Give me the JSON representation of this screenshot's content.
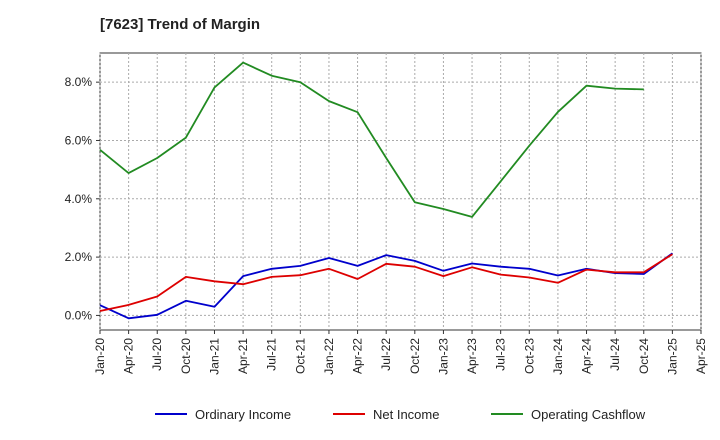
{
  "chart_data": {
    "type": "line",
    "title": "[7623]  Trend of Margin",
    "xlabel": "",
    "ylabel": "",
    "categories": [
      "Jan-20",
      "Apr-20",
      "Jul-20",
      "Oct-20",
      "Jan-21",
      "Apr-21",
      "Jul-21",
      "Oct-21",
      "Jan-22",
      "Apr-22",
      "Jul-22",
      "Oct-22",
      "Jan-23",
      "Apr-23",
      "Jul-23",
      "Oct-23",
      "Jan-24",
      "Apr-24",
      "Jul-24",
      "Oct-24",
      "Jan-25",
      "Apr-25"
    ],
    "ylim": [
      -0.5,
      9.0
    ],
    "yticks": [
      0.0,
      2.0,
      4.0,
      6.0,
      8.0
    ],
    "ytick_labels": [
      "0.0%",
      "2.0%",
      "4.0%",
      "6.0%",
      "8.0%"
    ],
    "grid": true,
    "legend_position": "bottom",
    "series": [
      {
        "name": "Ordinary Income",
        "color": "#0000cc",
        "values": [
          0.35,
          -0.1,
          0.02,
          0.5,
          0.3,
          1.35,
          1.6,
          1.7,
          1.97,
          1.7,
          2.07,
          1.87,
          1.53,
          1.78,
          1.67,
          1.6,
          1.37,
          1.6,
          1.45,
          1.42,
          2.13,
          null
        ]
      },
      {
        "name": "Net Income",
        "color": "#dd0000",
        "values": [
          0.15,
          0.36,
          0.65,
          1.32,
          1.17,
          1.07,
          1.32,
          1.38,
          1.6,
          1.25,
          1.77,
          1.67,
          1.35,
          1.65,
          1.4,
          1.3,
          1.12,
          1.57,
          1.48,
          1.48,
          2.1,
          null
        ]
      },
      {
        "name": "Operating Cashflow",
        "color": "#228b22",
        "values": [
          5.68,
          4.88,
          5.4,
          6.1,
          7.82,
          8.67,
          8.22,
          8.0,
          7.35,
          6.97,
          5.4,
          3.88,
          3.65,
          3.38,
          4.6,
          5.82,
          6.98,
          7.88,
          7.78,
          7.75,
          null,
          null
        ]
      }
    ]
  }
}
